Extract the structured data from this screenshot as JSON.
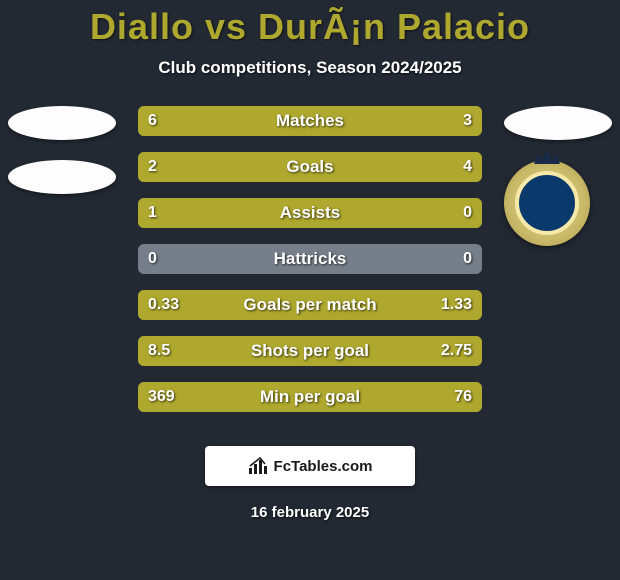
{
  "background_color": "#232933",
  "title": {
    "text": "Diallo vs DurÃ¡n Palacio",
    "color": "#afa82e",
    "fontsize": 36,
    "fontweight": 800
  },
  "subtitle": {
    "text": "Club competitions, Season 2024/2025",
    "color": "#ffffff",
    "fontsize": 17,
    "fontweight": 700
  },
  "bar_style": {
    "track_color": "#767e89",
    "fill_color": "#afa82e",
    "border_radius": 6,
    "height": 30,
    "gap": 16,
    "label_fontsize": 17,
    "value_fontsize": 16,
    "text_color": "#ffffff",
    "text_shadow": "1px 1px 2px rgba(0,0,0,0.7)"
  },
  "stats": [
    {
      "label": "Matches",
      "left_value": "6",
      "right_value": "3",
      "left_pct": 67,
      "right_pct": 33
    },
    {
      "label": "Goals",
      "left_value": "2",
      "right_value": "4",
      "left_pct": 33,
      "right_pct": 67
    },
    {
      "label": "Assists",
      "left_value": "1",
      "right_value": "0",
      "left_pct": 100,
      "right_pct": 0
    },
    {
      "label": "Hattricks",
      "left_value": "0",
      "right_value": "0",
      "left_pct": 0,
      "right_pct": 0
    },
    {
      "label": "Goals per match",
      "left_value": "0.33",
      "right_value": "1.33",
      "left_pct": 20,
      "right_pct": 80
    },
    {
      "label": "Shots per goal",
      "left_value": "8.5",
      "right_value": "2.75",
      "left_pct": 76,
      "right_pct": 24
    },
    {
      "label": "Min per goal",
      "left_value": "369",
      "right_value": "76",
      "left_pct": 83,
      "right_pct": 17
    }
  ],
  "left_player_badges": {
    "ellipse_color": "#fdfdfd",
    "count": 2
  },
  "right_player_badges": {
    "ellipse_color": "#fdfdfd",
    "club_badge": {
      "outer_colors": [
        "#e8d98b",
        "#c9ba6a",
        "#a8953e"
      ],
      "inner_bg": "#0a3a6b",
      "inner_border": "#f4e9a8",
      "crown_color": "#1a2a4a",
      "inner_text": ""
    }
  },
  "footer": {
    "brand": "FcTables.com",
    "bg_color": "#ffffff",
    "text_color": "#1a1a1a",
    "fontsize": 15
  },
  "date": {
    "text": "16 february 2025",
    "color": "#ffffff",
    "fontsize": 15
  }
}
